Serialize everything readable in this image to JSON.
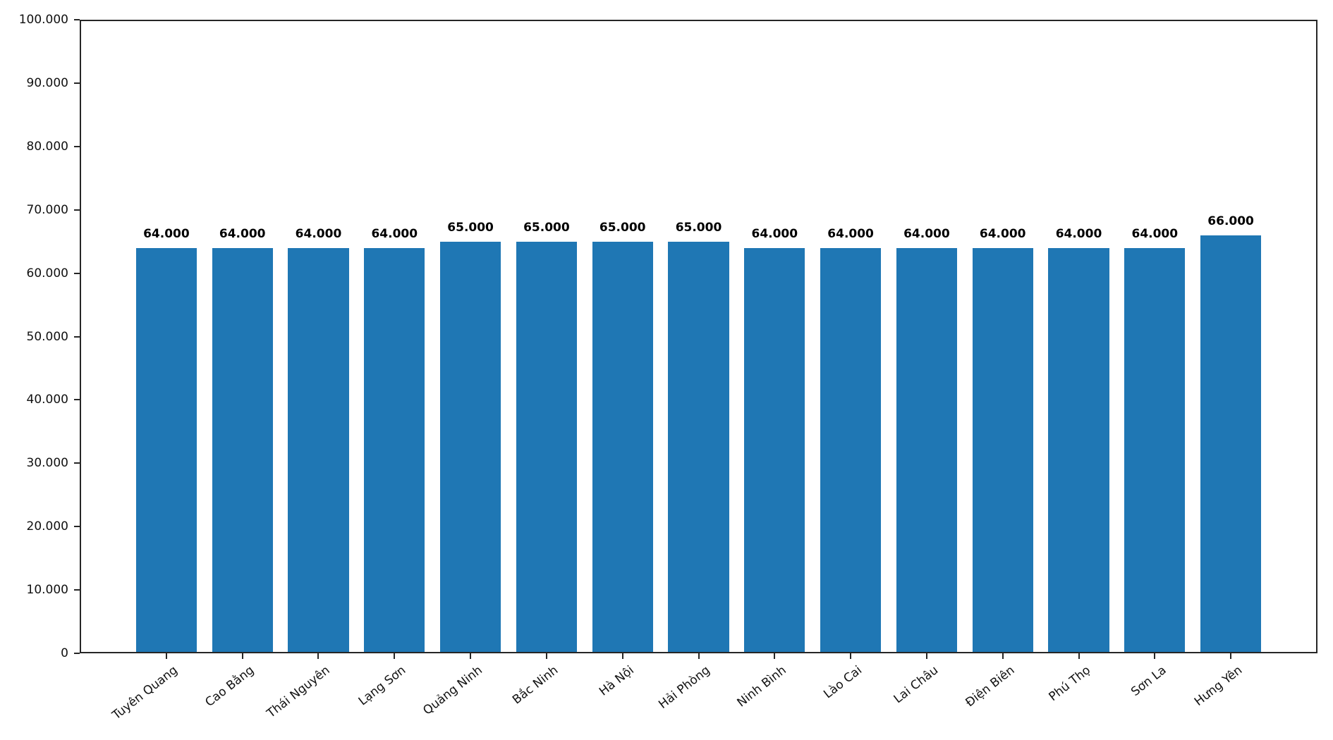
{
  "chart_data": {
    "type": "bar",
    "categories": [
      "Tuyên Quang",
      "Cao Bằng",
      "Thái Nguyên",
      "Lạng Sơn",
      "Quảng Ninh",
      "Bắc Ninh",
      "Hà Nội",
      "Hải Phòng",
      "Ninh Bình",
      "Lào Cai",
      "Lai Châu",
      "Điện Biên",
      "Phú Thọ",
      "Sơn La",
      "Hưng Yên"
    ],
    "values": [
      64000,
      64000,
      64000,
      64000,
      65000,
      65000,
      65000,
      65000,
      64000,
      64000,
      64000,
      64000,
      64000,
      64000,
      66000
    ],
    "value_labels": [
      "64.000",
      "64.000",
      "64.000",
      "64.000",
      "65.000",
      "65.000",
      "65.000",
      "65.000",
      "64.000",
      "64.000",
      "64.000",
      "64.000",
      "64.000",
      "64.000",
      "66.000"
    ],
    "ylim": [
      0,
      100000
    ],
    "y_ticks": [
      0,
      10000,
      20000,
      30000,
      40000,
      50000,
      60000,
      70000,
      80000,
      90000,
      100000
    ],
    "y_tick_labels": [
      "0",
      "10.000",
      "20.000",
      "30.000",
      "40.000",
      "50.000",
      "60.000",
      "70.000",
      "80.000",
      "90.000",
      "100.000"
    ],
    "bar_color": "#1f77b4",
    "axis_color": "#262626",
    "text_color": "#111111",
    "background_color": "#ffffff",
    "grid": false,
    "legend": false,
    "x_tick_rotation_deg": 38,
    "bar_relative_width": 0.8,
    "x_margin_fraction": 0.05
  }
}
